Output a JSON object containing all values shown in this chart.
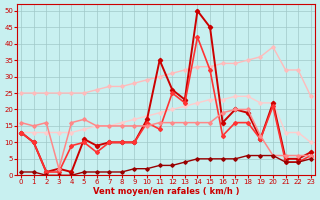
{
  "xlabel": "Vent moyen/en rafales ( km/h )",
  "xlim_min": -0.3,
  "xlim_max": 23.3,
  "ylim_min": 0,
  "ylim_max": 52,
  "yticks": [
    0,
    5,
    10,
    15,
    20,
    25,
    30,
    35,
    40,
    45,
    50
  ],
  "xticks": [
    0,
    1,
    2,
    3,
    4,
    5,
    6,
    7,
    8,
    9,
    10,
    11,
    12,
    13,
    14,
    15,
    16,
    17,
    18,
    19,
    20,
    21,
    22,
    23
  ],
  "bg_color": "#c8f0f0",
  "grid_color": "#a0c8c8",
  "series": [
    {
      "x": [
        0,
        1,
        2,
        3,
        4,
        5,
        6,
        7,
        8,
        9,
        10,
        11,
        12,
        13,
        14,
        15,
        16,
        17,
        18,
        19,
        20,
        21,
        22,
        23
      ],
      "y": [
        25,
        25,
        25,
        25,
        25,
        25,
        26,
        27,
        27,
        28,
        29,
        30,
        31,
        32,
        33,
        33,
        34,
        34,
        35,
        36,
        39,
        32,
        32,
        24
      ],
      "color": "#ffbbbb",
      "lw": 1.0,
      "marker": "D",
      "ms": 1.8
    },
    {
      "x": [
        0,
        1,
        2,
        3,
        4,
        5,
        6,
        7,
        8,
        9,
        10,
        11,
        12,
        13,
        14,
        15,
        16,
        17,
        18,
        19,
        20,
        21,
        22,
        23
      ],
      "y": [
        13,
        13,
        13,
        13,
        13,
        14,
        15,
        15,
        16,
        17,
        18,
        19,
        20,
        21,
        22,
        23,
        23,
        24,
        24,
        22,
        22,
        13,
        13,
        10
      ],
      "color": "#ffcccc",
      "lw": 1.0,
      "marker": "D",
      "ms": 1.8
    },
    {
      "x": [
        0,
        1,
        2,
        3,
        4,
        5,
        6,
        7,
        8,
        9,
        10,
        11,
        12,
        13,
        14,
        15,
        16,
        17,
        18,
        19,
        20,
        21,
        22,
        23
      ],
      "y": [
        13,
        10,
        1,
        2,
        1,
        11,
        9,
        10,
        10,
        10,
        17,
        35,
        26,
        23,
        50,
        45,
        16,
        20,
        19,
        11,
        22,
        5,
        5,
        7
      ],
      "color": "#cc0000",
      "lw": 1.4,
      "marker": "D",
      "ms": 2.2
    },
    {
      "x": [
        0,
        1,
        2,
        3,
        4,
        5,
        6,
        7,
        8,
        9,
        10,
        11,
        12,
        13,
        14,
        15,
        16,
        17,
        18,
        19,
        20,
        21,
        22,
        23
      ],
      "y": [
        13,
        10,
        1,
        1,
        9,
        10,
        7,
        10,
        10,
        10,
        16,
        14,
        25,
        22,
        42,
        32,
        12,
        16,
        16,
        11,
        21,
        4,
        4,
        6
      ],
      "color": "#ff3333",
      "lw": 1.2,
      "marker": "D",
      "ms": 2.0
    },
    {
      "x": [
        0,
        1,
        2,
        3,
        4,
        5,
        6,
        7,
        8,
        9,
        10,
        11,
        12,
        13,
        14,
        15,
        16,
        17,
        18,
        19,
        20,
        21,
        22,
        23
      ],
      "y": [
        16,
        15,
        16,
        2,
        16,
        17,
        15,
        15,
        15,
        15,
        15,
        16,
        16,
        16,
        16,
        16,
        19,
        20,
        20,
        12,
        6,
        6,
        6,
        6
      ],
      "color": "#ff8888",
      "lw": 1.1,
      "marker": "D",
      "ms": 1.8
    },
    {
      "x": [
        0,
        1,
        2,
        3,
        4,
        5,
        6,
        7,
        8,
        9,
        10,
        11,
        12,
        13,
        14,
        15,
        16,
        17,
        18,
        19,
        20,
        21,
        22,
        23
      ],
      "y": [
        1,
        1,
        0,
        0,
        0,
        1,
        1,
        1,
        1,
        2,
        2,
        3,
        3,
        4,
        5,
        5,
        5,
        5,
        6,
        6,
        6,
        4,
        4,
        5
      ],
      "color": "#990000",
      "lw": 1.0,
      "marker": "D",
      "ms": 1.8
    }
  ]
}
